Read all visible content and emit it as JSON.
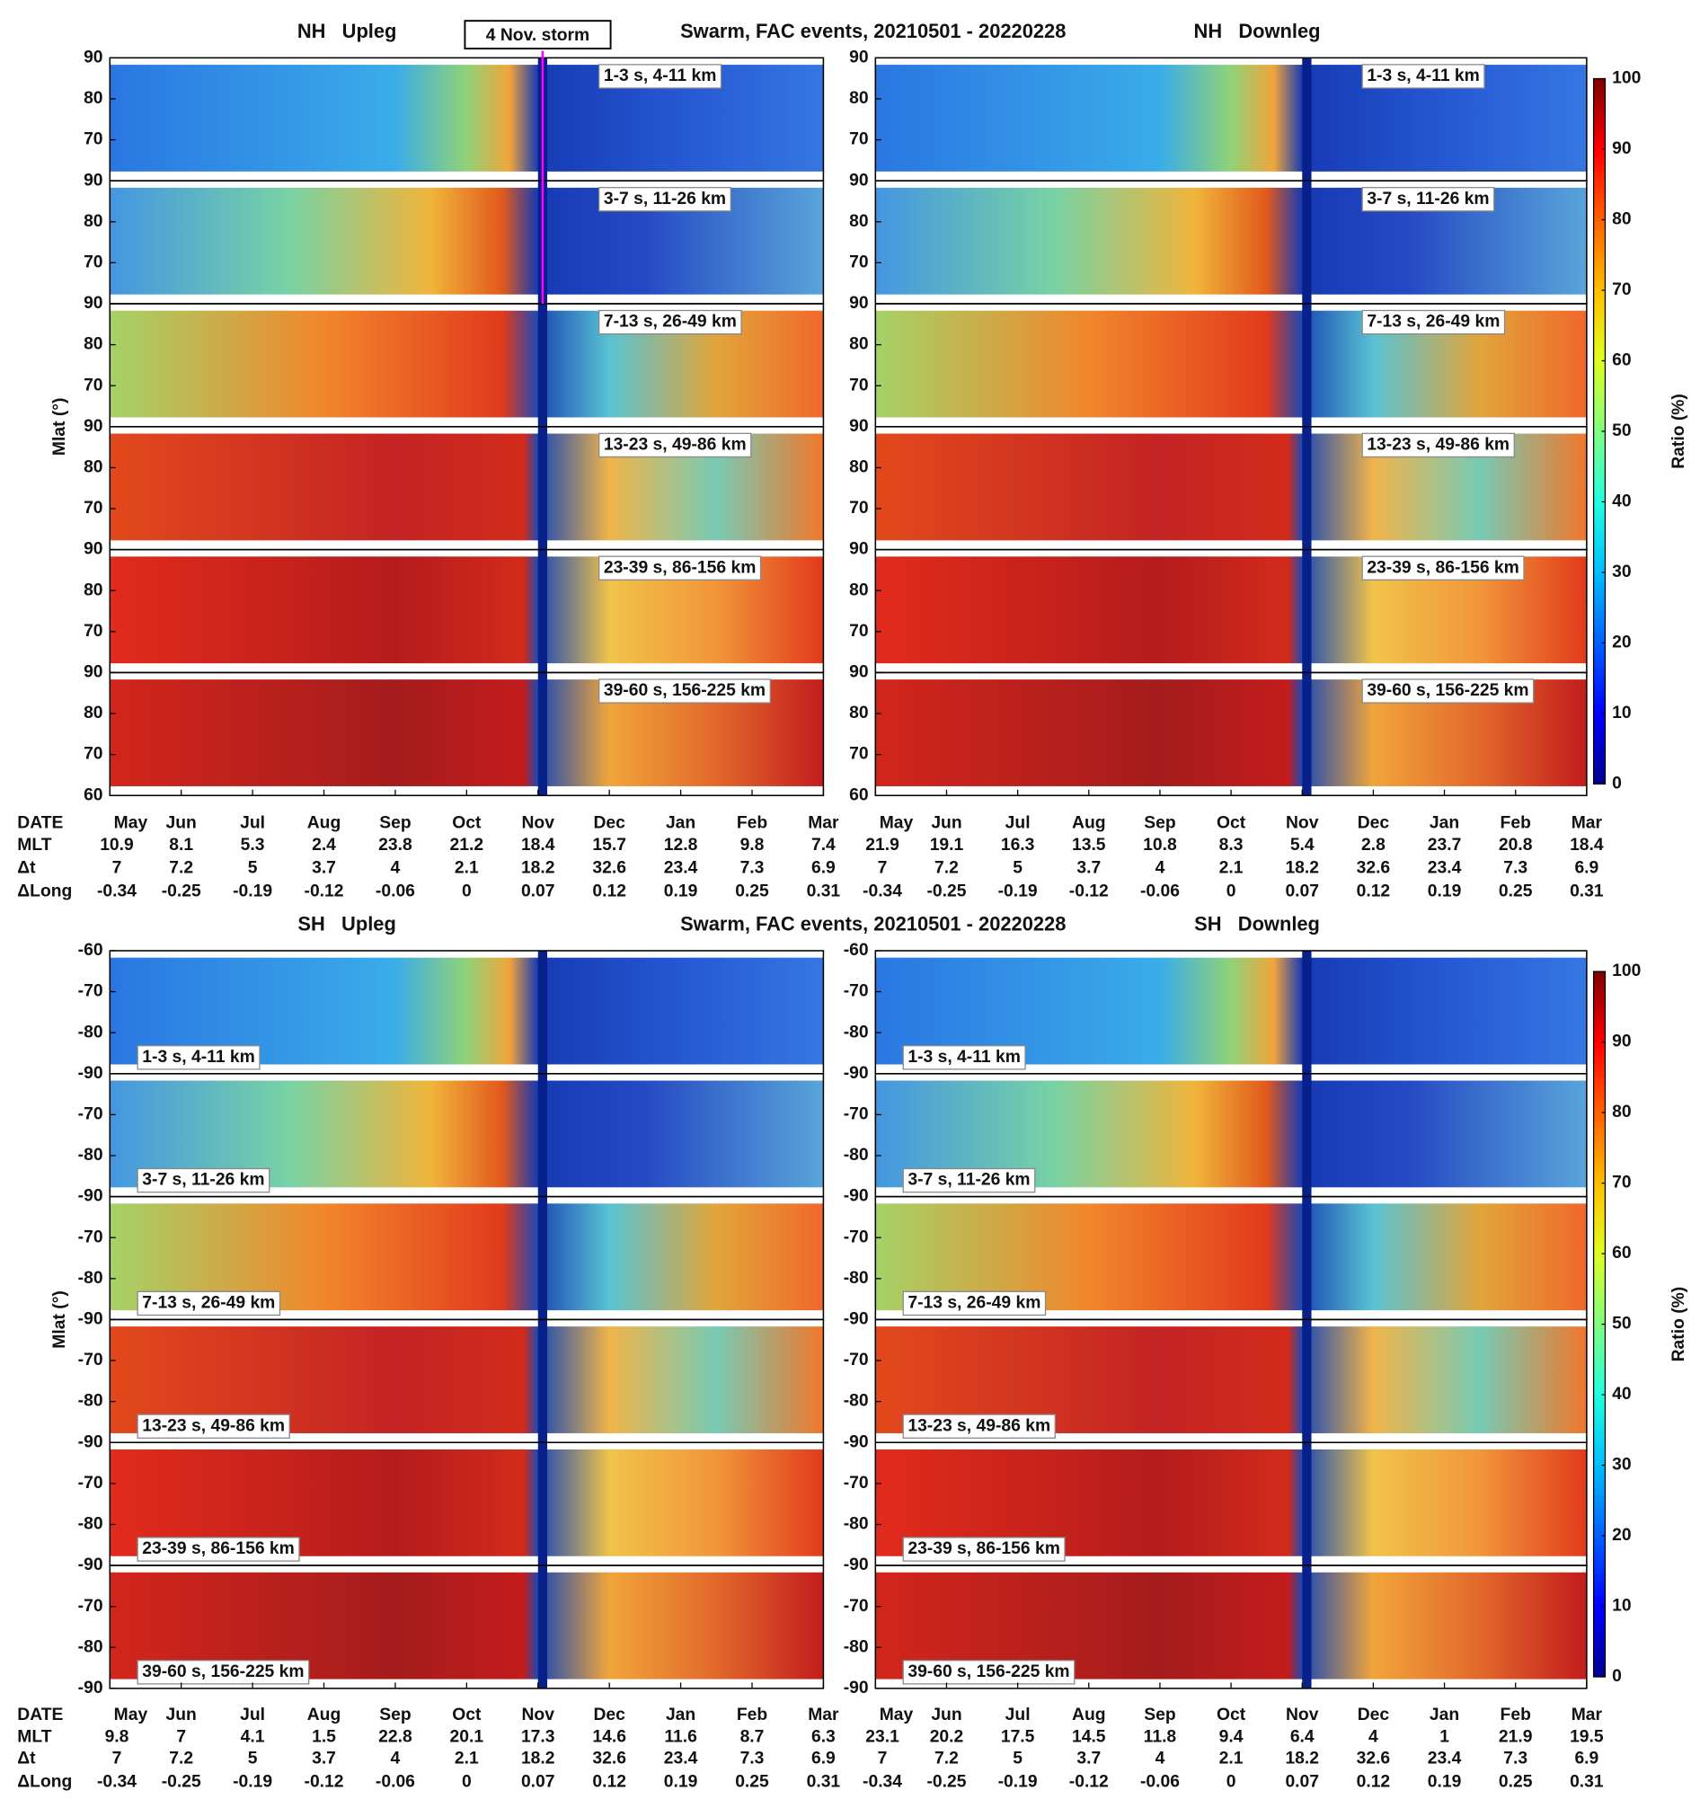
{
  "chart_data": [
    {
      "type": "contour",
      "title": "NH   Upleg",
      "subtitle": "Swarm, FAC events, 20210501 - 20220228",
      "ylabel": "Mlat (°)",
      "annotation": {
        "text": "4 Nov. storm",
        "color": "#ff00ff"
      },
      "categories": [
        "May",
        "Jun",
        "Jul",
        "Aug",
        "Sep",
        "Oct",
        "Nov",
        "Dec",
        "Jan",
        "Feb",
        "Mar"
      ],
      "row_labels": [
        "DATE",
        "MLT",
        "Δt",
        "ΔLong"
      ],
      "rows": [
        [
          10.9,
          8.1,
          5.3,
          2.4,
          23.8,
          21.2,
          18.4,
          15.7,
          12.8,
          9.8,
          7.4
        ],
        [
          7,
          7.2,
          5,
          3.7,
          4,
          2.1,
          18.2,
          32.6,
          23.4,
          7.3,
          6.9
        ],
        [
          -0.34,
          -0.25,
          -0.19,
          -0.12,
          -0.06,
          0,
          0.07,
          0.12,
          0.19,
          0.25,
          0.31
        ]
      ],
      "panels": [
        {
          "label": "1-3 s, 4-11 km",
          "ylim": [
            60,
            90
          ],
          "yticks": [
            70,
            80,
            90
          ]
        },
        {
          "label": "3-7 s, 11-26 km",
          "ylim": [
            60,
            90
          ],
          "yticks": [
            70,
            80,
            90
          ]
        },
        {
          "label": "7-13 s, 26-49 km",
          "ylim": [
            60,
            90
          ],
          "yticks": [
            70,
            80,
            90
          ]
        },
        {
          "label": "13-23 s, 49-86 km",
          "ylim": [
            60,
            90
          ],
          "yticks": [
            70,
            80,
            90
          ]
        },
        {
          "label": "23-39 s, 86-156 km",
          "ylim": [
            60,
            90
          ],
          "yticks": [
            70,
            80,
            90
          ]
        },
        {
          "label": "39-60 s, 156-225 km",
          "ylim": [
            60,
            90
          ],
          "yticks": [
            60,
            70,
            80,
            90
          ]
        }
      ]
    },
    {
      "type": "contour",
      "title": "NH   Downleg",
      "categories": [
        "May",
        "Jun",
        "Jul",
        "Aug",
        "Sep",
        "Oct",
        "Nov",
        "Dec",
        "Jan",
        "Feb",
        "Mar"
      ],
      "rows": [
        [
          21.9,
          19.1,
          16.3,
          13.5,
          10.8,
          8.3,
          5.4,
          2.8,
          23.7,
          20.8,
          18.4
        ],
        [
          7,
          7.2,
          5,
          3.7,
          4,
          2.1,
          18.2,
          32.6,
          23.4,
          7.3,
          6.9
        ],
        [
          -0.34,
          -0.25,
          -0.19,
          -0.12,
          -0.06,
          0,
          0.07,
          0.12,
          0.19,
          0.25,
          0.31
        ]
      ],
      "colorbar": {
        "label": "Ratio (%)",
        "lim": [
          0,
          100
        ],
        "ticks": [
          0,
          10,
          20,
          30,
          40,
          50,
          60,
          70,
          80,
          90,
          100
        ],
        "colormap": "jet"
      },
      "panels": [
        {
          "label": "1-3 s, 4-11 km",
          "ylim": [
            60,
            90
          ],
          "yticks": [
            70,
            80,
            90
          ]
        },
        {
          "label": "3-7 s, 11-26 km",
          "ylim": [
            60,
            90
          ],
          "yticks": [
            70,
            80,
            90
          ]
        },
        {
          "label": "7-13 s, 26-49 km",
          "ylim": [
            60,
            90
          ],
          "yticks": [
            70,
            80,
            90
          ]
        },
        {
          "label": "13-23 s, 49-86 km",
          "ylim": [
            60,
            90
          ],
          "yticks": [
            70,
            80,
            90
          ]
        },
        {
          "label": "23-39 s, 86-156 km",
          "ylim": [
            60,
            90
          ],
          "yticks": [
            70,
            80,
            90
          ]
        },
        {
          "label": "39-60 s, 156-225 km",
          "ylim": [
            60,
            90
          ],
          "yticks": [
            60,
            70,
            80,
            90
          ]
        }
      ]
    },
    {
      "type": "contour",
      "title": "SH   Upleg",
      "subtitle": "Swarm, FAC events, 20210501 - 20220228",
      "ylabel": "Mlat (°)",
      "categories": [
        "May",
        "Jun",
        "Jul",
        "Aug",
        "Sep",
        "Oct",
        "Nov",
        "Dec",
        "Jan",
        "Feb",
        "Mar"
      ],
      "row_labels": [
        "DATE",
        "MLT",
        "Δt",
        "ΔLong"
      ],
      "rows": [
        [
          9.8,
          7,
          4.1,
          1.5,
          22.8,
          20.1,
          17.3,
          14.6,
          11.6,
          8.7,
          6.3
        ],
        [
          7,
          7.2,
          5,
          3.7,
          4,
          2.1,
          18.2,
          32.6,
          23.4,
          7.3,
          6.9
        ],
        [
          -0.34,
          -0.25,
          -0.19,
          -0.12,
          -0.06,
          0,
          0.07,
          0.12,
          0.19,
          0.25,
          0.31
        ]
      ],
      "panels": [
        {
          "label": "1-3 s, 4-11 km",
          "ylim": [
            -90,
            -60
          ],
          "yticks": [
            -90,
            -80,
            -70,
            -60
          ]
        },
        {
          "label": "3-7 s, 11-26 km",
          "ylim": [
            -90,
            -60
          ],
          "yticks": [
            -90,
            -80,
            -70
          ]
        },
        {
          "label": "7-13 s, 26-49 km",
          "ylim": [
            -90,
            -60
          ],
          "yticks": [
            -90,
            -80,
            -70
          ]
        },
        {
          "label": "13-23 s, 49-86 km",
          "ylim": [
            -90,
            -60
          ],
          "yticks": [
            -90,
            -80,
            -70
          ]
        },
        {
          "label": "23-39 s, 86-156 km",
          "ylim": [
            -90,
            -60
          ],
          "yticks": [
            -90,
            -80,
            -70
          ]
        },
        {
          "label": "39-60 s, 156-225 km",
          "ylim": [
            -90,
            -60
          ],
          "yticks": [
            -90,
            -80,
            -70
          ]
        }
      ]
    },
    {
      "type": "contour",
      "title": "SH   Downleg",
      "categories": [
        "May",
        "Jun",
        "Jul",
        "Aug",
        "Sep",
        "Oct",
        "Nov",
        "Dec",
        "Jan",
        "Feb",
        "Mar"
      ],
      "rows": [
        [
          23.1,
          20.2,
          17.5,
          14.5,
          11.8,
          9.4,
          6.4,
          4,
          1,
          21.9,
          19.5
        ],
        [
          7,
          7.2,
          5,
          3.7,
          4,
          2.1,
          18.2,
          32.6,
          23.4,
          7.3,
          6.9
        ],
        [
          -0.34,
          -0.25,
          -0.19,
          -0.12,
          -0.06,
          0,
          0.07,
          0.12,
          0.19,
          0.25,
          0.31
        ]
      ],
      "colorbar": {
        "label": "Ratio (%)",
        "lim": [
          0,
          100
        ],
        "ticks": [
          0,
          10,
          20,
          30,
          40,
          50,
          60,
          70,
          80,
          90,
          100
        ],
        "colormap": "jet"
      },
      "panels": [
        {
          "label": "1-3 s, 4-11 km",
          "ylim": [
            -90,
            -60
          ],
          "yticks": [
            -90,
            -80,
            -70,
            -60
          ]
        },
        {
          "label": "3-7 s, 11-26 km",
          "ylim": [
            -90,
            -60
          ],
          "yticks": [
            -90,
            -80,
            -70
          ]
        },
        {
          "label": "7-13 s, 26-49 km",
          "ylim": [
            -90,
            -60
          ],
          "yticks": [
            -90,
            -80,
            -70
          ]
        },
        {
          "label": "13-23 s, 49-86 km",
          "ylim": [
            -90,
            -60
          ],
          "yticks": [
            -90,
            -80,
            -70
          ]
        },
        {
          "label": "23-39 s, 86-156 km",
          "ylim": [
            -90,
            -60
          ],
          "yticks": [
            -90,
            -80,
            -70
          ]
        },
        {
          "label": "39-60 s, 156-225 km",
          "ylim": [
            -90,
            -60
          ],
          "yticks": [
            -90,
            -80,
            -70
          ]
        }
      ]
    }
  ]
}
